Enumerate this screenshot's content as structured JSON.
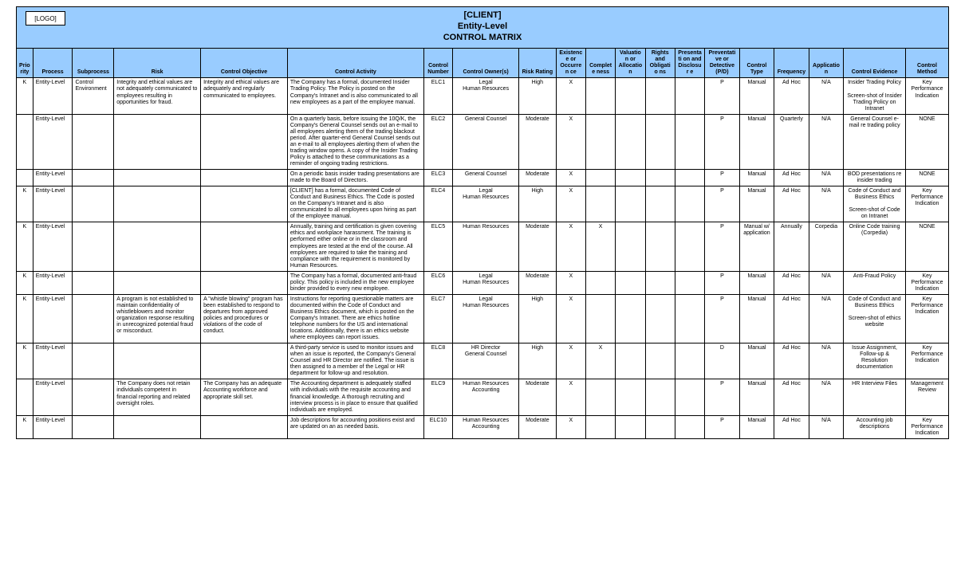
{
  "header": {
    "logo": "[LOGO]",
    "client": "[CLIENT]",
    "line2": "Entity-Level",
    "line3": "CONTROL MATRIX"
  },
  "columns": [
    "Priority",
    "Process",
    "Subprocess",
    "Risk",
    "Control Objective",
    "Control Activity",
    "Control Number",
    "Control Owner(s)",
    "Risk Rating",
    "Existence or Occurren ce",
    "Complete ness",
    "Valuation or Allocation",
    "Rights and Obligatio ns",
    "Presentati on and Disclosur e",
    "Preventative or Detective (P/D)",
    "Control Type",
    "Frequency",
    "Application",
    "Control Evidence",
    "Control Method"
  ],
  "rows": [
    {
      "priority": "K",
      "process": "Entity-Level",
      "subprocess": "Control Environment",
      "risk": "Integrity and ethical values are not adequately communicated to employees resulting in opportunities for fraud.",
      "objective": "Integrity and ethical values are adequately and regularly communicated to employees.",
      "activity": "The Company has a formal, documented Insider Trading Policy.  The Policy is posted on the Company's Intranet and is also communicated to all new employees as a part of the employee manual.",
      "num": "ELC1",
      "owner": "Legal\nHuman Resources",
      "rating": "High",
      "a1": "X",
      "a2": "",
      "a3": "",
      "a4": "",
      "a5": "",
      "pd": "P",
      "ctype": "Manual",
      "freq": "Ad Hoc",
      "app": "N/A",
      "evidence": "Insider Trading Policy\n\nScreen-shot of Insider Trading Policy on Intranet",
      "method": "Key Performance Indication"
    },
    {
      "priority": "",
      "process": "Entity-Level",
      "subprocess": "",
      "risk": "",
      "objective": "",
      "activity": "On a quarterly basis, before issuing the 10Q/K, the Company's General Counsel sends out an e-mail to all employees alerting them of the trading blackout period.  After quarter-end General Counsel sends out an e-mail to all employees alerting them of when the trading window opens.  A copy of the Insider Trading Policy is attached to these communications as a reminder of ongoing trading restrictions.",
      "num": "ELC2",
      "owner": "General Counsel",
      "rating": "Moderate",
      "a1": "X",
      "a2": "",
      "a3": "",
      "a4": "",
      "a5": "",
      "pd": "P",
      "ctype": "Manual",
      "freq": "Quarterly",
      "app": "N/A",
      "evidence": "General Counsel e-mail re trading policy",
      "method": "NONE"
    },
    {
      "priority": "",
      "process": "Entity-Level",
      "subprocess": "",
      "risk": "",
      "objective": "",
      "activity": "On a periodic basis insider trading presentations are made to the Board of Directors.",
      "num": "ELC3",
      "owner": "General Counsel",
      "rating": "Moderate",
      "a1": "X",
      "a2": "",
      "a3": "",
      "a4": "",
      "a5": "",
      "pd": "P",
      "ctype": "Manual",
      "freq": "Ad Hoc",
      "app": "N/A",
      "evidence": "BOD presentations re insider trading",
      "method": "NONE"
    },
    {
      "priority": "K",
      "process": "Entity-Level",
      "subprocess": "",
      "risk": "",
      "objective": "",
      "activity": "[CLIENT] has a formal, documented Code of Conduct and Business Ethics.  The Code is posted on the Company's Intranet and is also communicated to all employees upon hiring as part of the employee manual.",
      "num": "ELC4",
      "owner": "Legal\nHuman Resources",
      "rating": "High",
      "a1": "X",
      "a2": "",
      "a3": "",
      "a4": "",
      "a5": "",
      "pd": "P",
      "ctype": "Manual",
      "freq": "Ad Hoc",
      "app": "N/A",
      "evidence": "Code of Conduct and Business Ethics\n\nScreen-shot of Code on Intranet",
      "method": "Key Performance Indication"
    },
    {
      "priority": "K",
      "process": "Entity-Level",
      "subprocess": "",
      "risk": "",
      "objective": "",
      "activity": "Annually, training and certification is given covering ethics and workplace harassment.  The training is performed either online or in the classroom and employees are tested at the end of the course.  All employees are required to take the training and compliance with the requirement is monitored by Human Resources.",
      "num": "ELC5",
      "owner": "Human Resources",
      "rating": "Moderate",
      "a1": "X",
      "a2": "X",
      "a3": "",
      "a4": "",
      "a5": "",
      "pd": "P",
      "ctype": "Manual w/ application",
      "freq": "Annually",
      "app": "Corpedia",
      "evidence": "Online Code training (Corpedia)",
      "method": "NONE"
    },
    {
      "priority": "K",
      "process": "Entity-Level",
      "subprocess": "",
      "risk": "",
      "objective": "",
      "activity": "The Company has a formal, documented anti-fraud policy.  This policy is included in the new employee binder provided to every new employee.",
      "num": "ELC6",
      "owner": "Legal\nHuman Resources",
      "rating": "Moderate",
      "a1": "X",
      "a2": "",
      "a3": "",
      "a4": "",
      "a5": "",
      "pd": "P",
      "ctype": "Manual",
      "freq": "Ad Hoc",
      "app": "N/A",
      "evidence": "Anti-Fraud Policy",
      "method": "Key Performance Indication"
    },
    {
      "priority": "K",
      "process": "Entity-Level",
      "subprocess": "",
      "risk": "A program is not established to maintain confidentiality of whistleblowers and monitor organization response resulting in unrecognized potential fraud or misconduct.",
      "objective": "A \"whistle blowing\" program has been established to respond to departures from approved policies and procedures or violations of the code of conduct.",
      "activity": "Instructions for reporting questionable matters are documented within the Code of Conduct and Business Ethics document, which is posted on the Company's Intranet.  There are ethics hotline telephone numbers for the US and international locations.  Additionally, there is an ethics website where employees can report issues.",
      "num": "ELC7",
      "owner": "Legal\nHuman Resources",
      "rating": "High",
      "a1": "X",
      "a2": "",
      "a3": "",
      "a4": "",
      "a5": "",
      "pd": "P",
      "ctype": "Manual",
      "freq": "Ad Hoc",
      "app": "N/A",
      "evidence": "Code of Conduct and Business Ethics\n\nScreen-shot of ethics website",
      "method": "Key Performance Indication"
    },
    {
      "priority": "K",
      "process": "Entity-Level",
      "subprocess": "",
      "risk": "",
      "objective": "",
      "activity": "A third-party service is used to monitor issues and when an issue is reported, the Company's General Counsel and HR Director are notified.  The issue is then assigned to a member of the Legal or HR department for follow-up and resolution.",
      "num": "ELC8",
      "owner": "HR Director\nGeneral Counsel",
      "rating": "High",
      "a1": "X",
      "a2": "X",
      "a3": "",
      "a4": "",
      "a5": "",
      "pd": "D",
      "ctype": "Manual",
      "freq": "Ad Hoc",
      "app": "N/A",
      "evidence": "Issue Assignment, Follow-up & Resolution documentation",
      "method": "Key Performance Indication"
    },
    {
      "priority": "",
      "process": "Entity-Level",
      "subprocess": "",
      "risk": "The Company does not retain individuals competent in financial reporting and related oversight roles.",
      "objective": "The Company has an adequate Accounting workforce and appropriate skill set.",
      "activity": "The Accounting department is adequately staffed with individuals with the requisite accounting and financial knowledge.  A thorough recruiting and interview process is in place to ensure that qualified individuals are employed.",
      "num": "ELC9",
      "owner": "Human Resources\nAccounting",
      "rating": "Moderate",
      "a1": "X",
      "a2": "",
      "a3": "",
      "a4": "",
      "a5": "",
      "pd": "P",
      "ctype": "Manual",
      "freq": "Ad Hoc",
      "app": "N/A",
      "evidence": "HR Interview Files",
      "method": "Management Review"
    },
    {
      "priority": "K",
      "process": "Entity-Level",
      "subprocess": "",
      "risk": "",
      "objective": "",
      "activity": "Job descriptions for accounting positions exist and are updated on an as needed basis.",
      "num": "ELC10",
      "owner": "Human Resources\nAccounting",
      "rating": "Moderate",
      "a1": "X",
      "a2": "",
      "a3": "",
      "a4": "",
      "a5": "",
      "pd": "P",
      "ctype": "Manual",
      "freq": "Ad Hoc",
      "app": "N/A",
      "evidence": "Accounting job descriptions",
      "method": "Key Performance Indication"
    }
  ]
}
